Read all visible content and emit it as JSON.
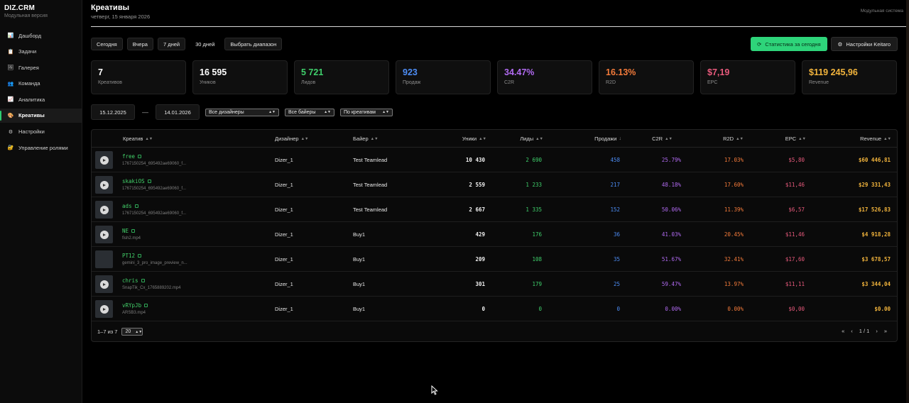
{
  "brand": {
    "title": "DIZ.CRM",
    "subtitle": "Модульная версия"
  },
  "sidebar": {
    "items": [
      {
        "label": "Дашборд",
        "icon": "chart-icon",
        "glyph": "📊"
      },
      {
        "label": "Задачи",
        "icon": "clipboard-icon",
        "glyph": "📋"
      },
      {
        "label": "Галерея",
        "icon": "gallery-icon",
        "glyph": "🖼"
      },
      {
        "label": "Команда",
        "icon": "team-icon",
        "glyph": "👥"
      },
      {
        "label": "Аналитика",
        "icon": "analytics-icon",
        "glyph": "📈"
      },
      {
        "label": "Креативы",
        "icon": "palette-icon",
        "glyph": "🎨",
        "active": true
      },
      {
        "label": "Настройки",
        "icon": "gear-icon",
        "glyph": "⚙"
      },
      {
        "label": "Управление ролями",
        "icon": "lock-icon",
        "glyph": "🔐"
      }
    ]
  },
  "header": {
    "title": "Креативы",
    "date": "четверг, 15 января 2026",
    "right_text": "Модульная система"
  },
  "toolbar": {
    "ranges": [
      "Сегодня",
      "Вчера",
      "7 дней",
      "30 дней",
      "Выбрать диапазон"
    ],
    "stats_today_label": "Статистика за сегодня",
    "keitaro_settings_label": "Настройки Keitaro"
  },
  "kpis": [
    {
      "value": "7",
      "label": "Креативов",
      "color": "#ffffff"
    },
    {
      "value": "16 595",
      "label": "Уников",
      "color": "#ffffff"
    },
    {
      "value": "5 721",
      "label": "Лидов",
      "color": "#3fcf6b"
    },
    {
      "value": "923",
      "label": "Продаж",
      "color": "#4d8df5"
    },
    {
      "value": "34.47%",
      "label": "C2R",
      "color": "#b06af0"
    },
    {
      "value": "16.13%",
      "label": "R2D",
      "color": "#f27a3a"
    },
    {
      "value": "$7,19",
      "label": "EPC",
      "color": "#e85a7c"
    },
    {
      "value": "$119 245,96",
      "label": "Revenue",
      "color": "#f2b43c"
    }
  ],
  "filters": {
    "date_from": "15.12.2025",
    "date_to": "14.01.2026",
    "separator": "—",
    "designers": "Все дизайнеры",
    "buyers": "Все байеры",
    "group_by": "По креативам"
  },
  "table": {
    "headers": {
      "creative": "Креатив",
      "designer": "Дизайнер",
      "buyer": "Байер",
      "uniques": "Уники",
      "leads": "Лиды",
      "sales": "Продажи",
      "c2r": "C2R",
      "r2d": "R2D",
      "epc": "EPC",
      "revenue": "Revenue"
    },
    "rows": [
      {
        "name": "free",
        "file": "1767150254_695492ae69060_f...",
        "designer": "Dizer_1",
        "buyer": "Test Teamlead",
        "uniques": "10 430",
        "leads": "2 690",
        "sales": "458",
        "c2r": "25.79%",
        "r2d": "17.03%",
        "epc": "$5,80",
        "revenue": "$60 446,81",
        "play": true
      },
      {
        "name": "skakiOS",
        "file": "1767150254_695492ae69060_f...",
        "designer": "Dizer_1",
        "buyer": "Test Teamlead",
        "uniques": "2 559",
        "leads": "1 233",
        "sales": "217",
        "c2r": "48.18%",
        "r2d": "17.60%",
        "epc": "$11,46",
        "revenue": "$29 331,43",
        "play": true
      },
      {
        "name": "ads",
        "file": "1767150254_695492ae69060_f...",
        "designer": "Dizer_1",
        "buyer": "Test Teamlead",
        "uniques": "2 667",
        "leads": "1 335",
        "sales": "152",
        "c2r": "50.06%",
        "r2d": "11.39%",
        "epc": "$6,57",
        "revenue": "$17 526,83",
        "play": true
      },
      {
        "name": "NE",
        "file": "fish2.mp4",
        "designer": "Dizer_1",
        "buyer": "Buy1",
        "uniques": "429",
        "leads": "176",
        "sales": "36",
        "c2r": "41.03%",
        "r2d": "20.45%",
        "epc": "$11,46",
        "revenue": "$4 918,28",
        "play": true
      },
      {
        "name": "PT12",
        "file": "gemini_3_pro_image_preview_n...",
        "designer": "Dizer_1",
        "buyer": "Buy1",
        "uniques": "209",
        "leads": "108",
        "sales": "35",
        "c2r": "51.67%",
        "r2d": "32.41%",
        "epc": "$17,60",
        "revenue": "$3 678,57",
        "play": false
      },
      {
        "name": "chris",
        "file": "SnapTik_Cx_1765889202.mp4",
        "designer": "Dizer_1",
        "buyer": "Buy1",
        "uniques": "301",
        "leads": "179",
        "sales": "25",
        "c2r": "59.47%",
        "r2d": "13.97%",
        "epc": "$11,11",
        "revenue": "$3 344,04",
        "play": true
      },
      {
        "name": "vRYpJb",
        "file": "ARSB3.mp4",
        "designer": "Dizer_1",
        "buyer": "Buy1",
        "uniques": "0",
        "leads": "0",
        "sales": "0",
        "c2r": "0.00%",
        "r2d": "0.00%",
        "epc": "$0,00",
        "revenue": "$0.00",
        "play": true
      }
    ]
  },
  "pagination": {
    "range": "1–7 из 7",
    "page_size": "20",
    "page": "1 / 1",
    "first": "«",
    "prev": "‹",
    "next": "›",
    "last": "»"
  }
}
